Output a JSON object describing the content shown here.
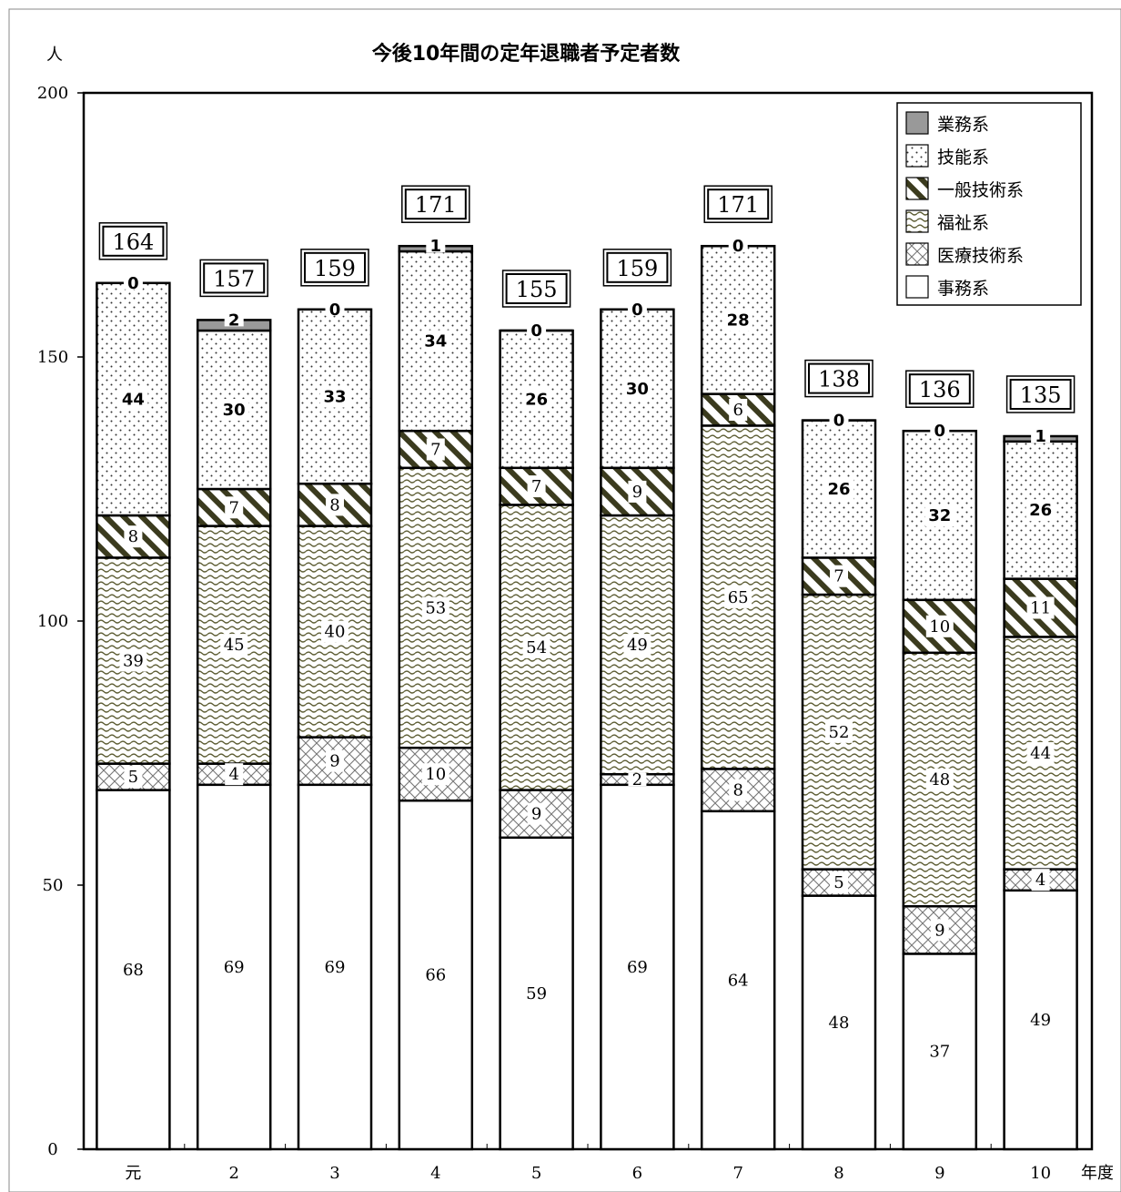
{
  "chart_data": {
    "type": "bar",
    "stacked": true,
    "title": "今後10年間の定年退職者予定者数",
    "ylabel": "人",
    "xlabel": "年度",
    "ylim": [
      0,
      200
    ],
    "yticks": [
      0,
      50,
      100,
      150,
      200
    ],
    "categories": [
      "元",
      "2",
      "3",
      "4",
      "5",
      "6",
      "7",
      "8",
      "9",
      "10"
    ],
    "series": [
      {
        "name": "事務系",
        "values": [
          68,
          69,
          69,
          66,
          59,
          69,
          64,
          48,
          37,
          49
        ]
      },
      {
        "name": "医療技術系",
        "values": [
          5,
          4,
          9,
          10,
          9,
          2,
          8,
          5,
          9,
          4
        ]
      },
      {
        "name": "福祉系",
        "values": [
          39,
          45,
          40,
          53,
          54,
          49,
          65,
          52,
          48,
          44
        ]
      },
      {
        "name": "一般技術系",
        "values": [
          8,
          7,
          8,
          7,
          7,
          9,
          6,
          7,
          10,
          11
        ]
      },
      {
        "name": "技能系",
        "values": [
          44,
          30,
          33,
          34,
          26,
          30,
          28,
          26,
          32,
          26
        ]
      },
      {
        "name": "業務系",
        "values": [
          0,
          2,
          0,
          1,
          0,
          0,
          0,
          0,
          0,
          1
        ]
      }
    ],
    "totals": [
      164,
      157,
      159,
      171,
      155,
      159,
      171,
      138,
      136,
      135
    ],
    "legend_order": [
      "業務系",
      "技能系",
      "一般技術系",
      "福祉系",
      "医療技術系",
      "事務系"
    ],
    "legend_position": "top-right",
    "grid": false
  }
}
